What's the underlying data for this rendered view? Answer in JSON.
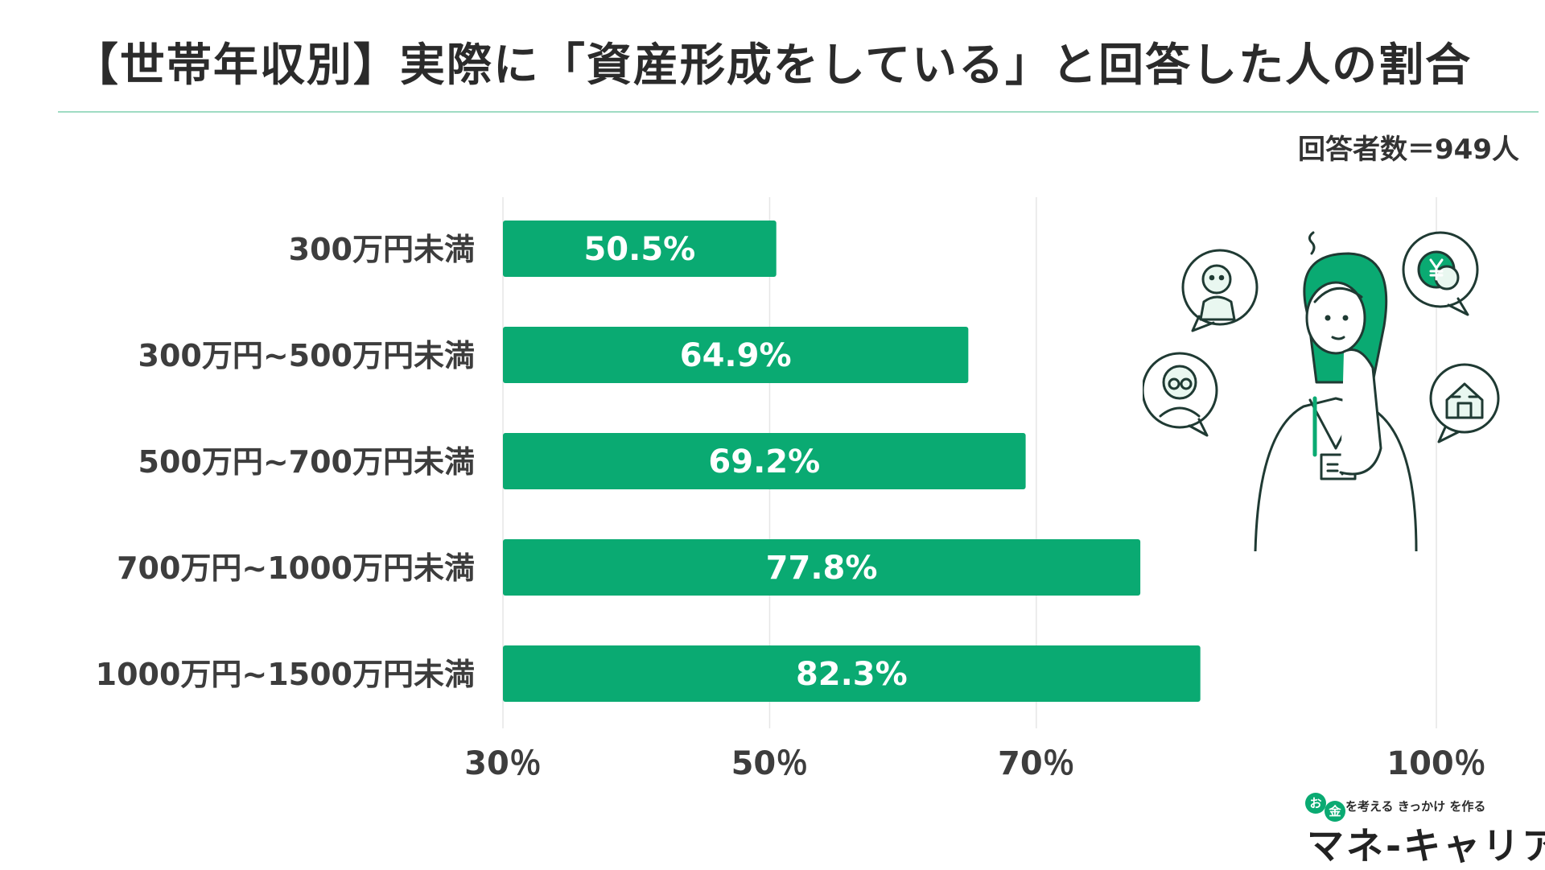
{
  "header": {
    "title": "【世帯年収別】実際に「資産形成をしている」と回答した人の割合",
    "respondents": "回答者数＝949人"
  },
  "logo": {
    "dot1": "お",
    "dot2": "金",
    "tagline": "を考える きっかけ を作る",
    "name": "マネ-キャリア"
  },
  "illustration": {
    "icons": [
      "baby-icon",
      "yen-coin-icon",
      "elderly-person-icon",
      "house-icon",
      "thinking-woman-icon"
    ]
  },
  "chart_data": {
    "type": "bar",
    "orientation": "horizontal",
    "categories": [
      "300万円未満",
      "300万円~500万円未満",
      "500万円~700万円未満",
      "700万円~1000万円未満",
      "1000万円~1500万円未満"
    ],
    "values": [
      50.5,
      64.9,
      69.2,
      77.8,
      82.3
    ],
    "value_labels": [
      "50.5%",
      "64.9%",
      "69.2%",
      "77.8%",
      "82.3%"
    ],
    "x_ticks": [
      30,
      50,
      70,
      100
    ],
    "x_tick_labels": [
      "30％",
      "50％",
      "70％",
      "100％"
    ],
    "xlim": [
      30,
      100
    ],
    "grid": true,
    "colors": {
      "bar": "#0aaa72",
      "grid": "#e6e6e6",
      "label": "#3d3d3d",
      "bar_text": "#ffffff"
    }
  }
}
